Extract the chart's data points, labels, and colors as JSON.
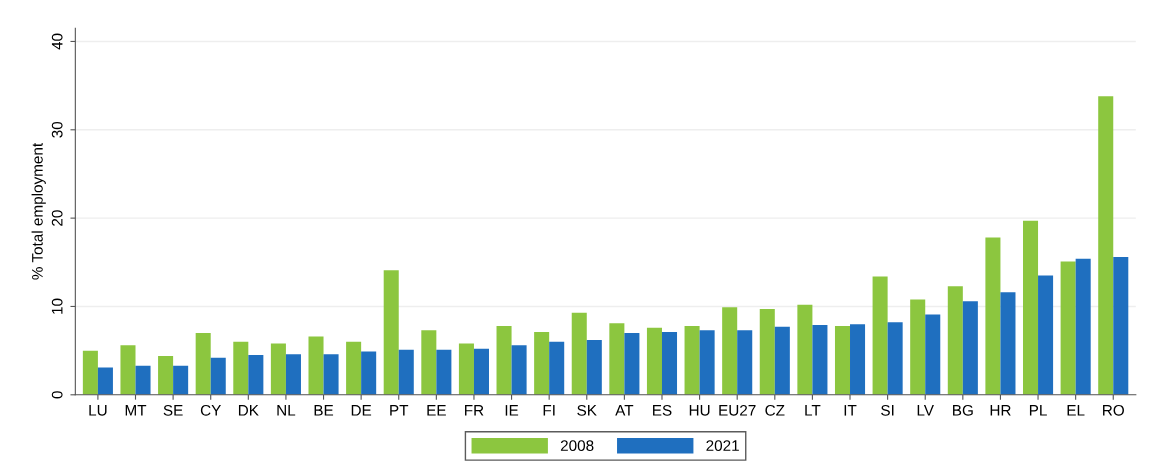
{
  "chart_data": {
    "type": "bar",
    "ylabel": "% Total employment",
    "categories": [
      "LU",
      "MT",
      "SE",
      "CY",
      "DK",
      "NL",
      "BE",
      "DE",
      "PT",
      "EE",
      "FR",
      "IE",
      "FI",
      "SK",
      "AT",
      "ES",
      "HU",
      "EU27",
      "CZ",
      "LT",
      "IT",
      "SI",
      "LV",
      "BG",
      "HR",
      "PL",
      "EL",
      "RO"
    ],
    "series": [
      {
        "name": "2008",
        "color": "#8cc63f",
        "values": [
          5.0,
          5.6,
          4.4,
          7.0,
          6.0,
          5.8,
          6.6,
          6.0,
          14.1,
          7.3,
          5.8,
          7.8,
          7.1,
          9.3,
          8.1,
          7.6,
          7.8,
          9.9,
          9.7,
          10.2,
          7.8,
          13.4,
          10.8,
          12.3,
          17.8,
          19.7,
          15.1,
          33.8
        ]
      },
      {
        "name": "2021",
        "color": "#1f6fbf",
        "values": [
          3.1,
          3.3,
          3.3,
          4.2,
          4.5,
          4.6,
          4.6,
          4.9,
          5.1,
          5.1,
          5.2,
          5.6,
          6.0,
          6.2,
          7.0,
          7.1,
          7.3,
          7.3,
          7.7,
          7.9,
          8.0,
          8.2,
          9.1,
          10.6,
          11.6,
          13.5,
          15.4,
          15.6
        ]
      }
    ],
    "ylim": [
      0,
      41.5
    ],
    "yticks": [
      0,
      10,
      20,
      30,
      40
    ],
    "grid": "y",
    "legend": "bottom"
  }
}
